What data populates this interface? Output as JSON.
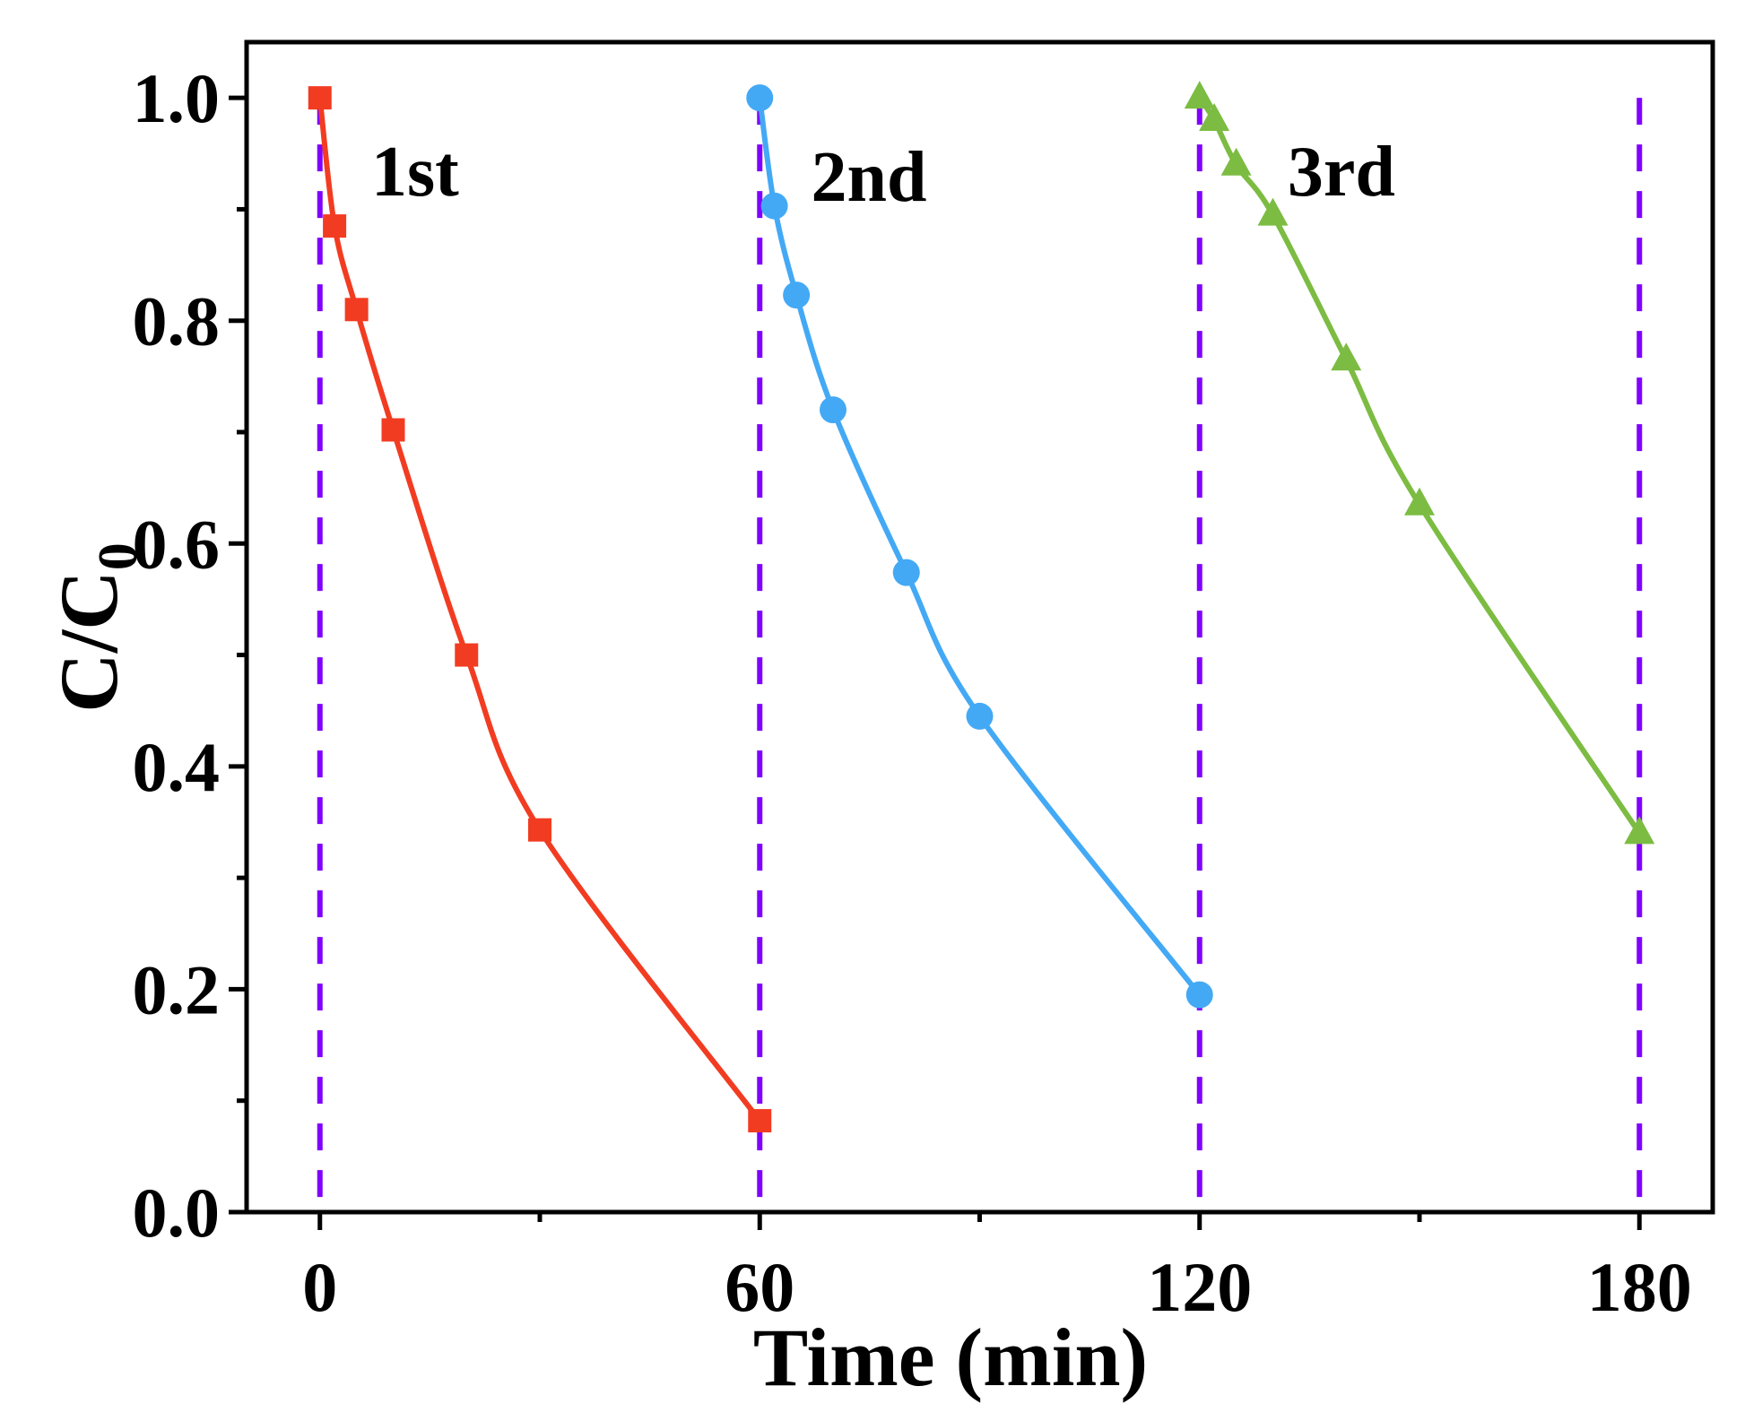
{
  "chart_data": {
    "type": "line",
    "title": "",
    "xlabel": "Time (min)",
    "ylabel": {
      "main": "C/C",
      "subscript": "0"
    },
    "xlim": [
      -10,
      190
    ],
    "ylim": [
      0,
      1.05
    ],
    "xticks": [
      0,
      60,
      120,
      180
    ],
    "xtick_labels": [
      "0",
      "60",
      "120",
      "180"
    ],
    "x_minor_ticks": [
      30,
      90,
      150
    ],
    "yticks": [
      0.0,
      0.2,
      0.4,
      0.6,
      0.8,
      1.0
    ],
    "ytick_labels": [
      "0.0",
      "0.2",
      "0.4",
      "0.6",
      "0.8",
      "1.0"
    ],
    "y_minor_ticks": [
      0.1,
      0.3,
      0.5,
      0.7,
      0.9
    ],
    "grid": false,
    "vlines": [
      0,
      60,
      120,
      180
    ],
    "vline_color": "#8000ff",
    "series": [
      {
        "name": "1st",
        "color": "#f23c22",
        "marker": "square",
        "label_at": [
          7,
          0.935
        ],
        "x": [
          0,
          2,
          5,
          10,
          20,
          30,
          60
        ],
        "y": [
          1.0,
          0.885,
          0.81,
          0.702,
          0.5,
          0.343,
          0.082
        ]
      },
      {
        "name": "2nd",
        "color": "#43a9f5",
        "marker": "circle",
        "label_at": [
          67,
          0.93
        ],
        "x": [
          60,
          62,
          65,
          70,
          80,
          90,
          120
        ],
        "y": [
          1.0,
          0.903,
          0.823,
          0.72,
          0.574,
          0.445,
          0.195
        ]
      },
      {
        "name": "3rd",
        "color": "#7cbc42",
        "marker": "triangle",
        "label_at": [
          132,
          0.935
        ],
        "x": [
          120,
          122,
          125,
          130,
          140,
          150,
          180
        ],
        "y": [
          1.0,
          0.98,
          0.94,
          0.895,
          0.765,
          0.635,
          0.34
        ]
      }
    ]
  }
}
